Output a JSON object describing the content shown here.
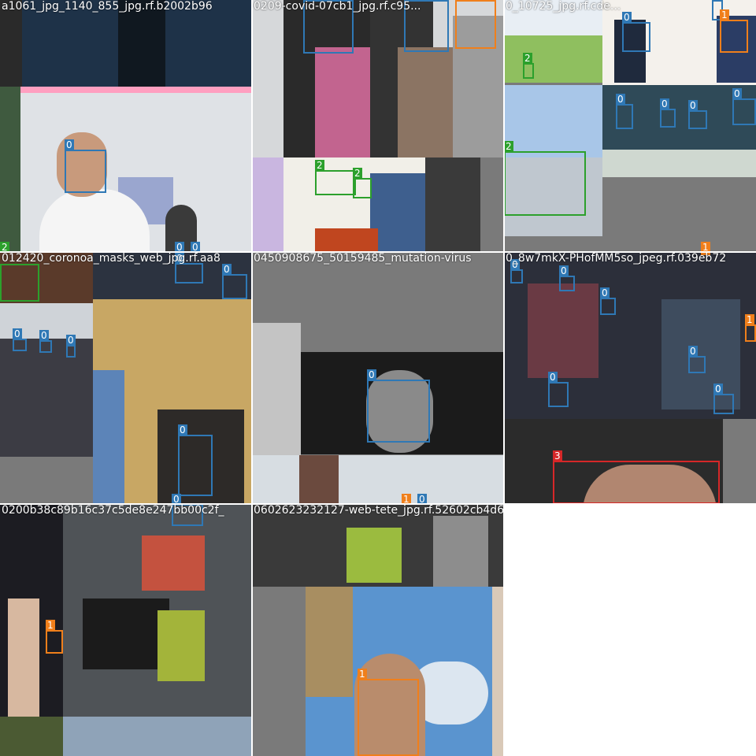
{
  "mosaic": {
    "colors": {
      "0": "#2f78b5",
      "1": "#f07f1b",
      "2": "#2ca02c",
      "3": "#d62728"
    },
    "tiles": [
      {
        "title": "a1061_jpg_1140_855_jpg.rf.b2002b96",
        "boxes": [
          {
            "cls": "0"
          },
          {
            "cls": "0"
          },
          {
            "cls": "0"
          },
          {
            "cls": "2"
          }
        ]
      },
      {
        "title": "0209-covid-07cb1_jpg.rf.c95...",
        "boxes": [
          {
            "cls": "0"
          },
          {
            "cls": "0"
          },
          {
            "cls": "1"
          },
          {
            "cls": "2"
          },
          {
            "cls": "2"
          }
        ]
      },
      {
        "title": "0_10725_jpg.rf.cde...",
        "boxes": [
          {
            "cls": "2"
          },
          {
            "cls": "0"
          },
          {
            "cls": "0"
          },
          {
            "cls": "1"
          },
          {
            "cls": "0"
          },
          {
            "cls": "0"
          },
          {
            "cls": "0"
          },
          {
            "cls": "0"
          },
          {
            "cls": "2"
          },
          {
            "cls": "1"
          }
        ]
      },
      {
        "title": "012420_coronoa_masks_web_jpg.rf.aa8",
        "boxes": [
          {
            "cls": "0"
          },
          {
            "cls": "0"
          },
          {
            "cls": "0"
          },
          {
            "cls": "0"
          },
          {
            "cls": "0"
          },
          {
            "cls": "0"
          },
          {
            "cls": "0"
          }
        ]
      },
      {
        "title": "0450908675_50159485_mutation-virus",
        "boxes": [
          {
            "cls": "0"
          },
          {
            "cls": "1"
          },
          {
            "cls": "0"
          }
        ]
      },
      {
        "title": "0_8w7mkX-PHofMM5so_jpeg.rf.039eb72",
        "boxes": [
          {
            "cls": "0"
          },
          {
            "cls": "0"
          },
          {
            "cls": "0"
          },
          {
            "cls": "0"
          },
          {
            "cls": "0"
          },
          {
            "cls": "0"
          },
          {
            "cls": "1"
          },
          {
            "cls": "1"
          },
          {
            "cls": "3"
          }
        ]
      },
      {
        "title": "0200b38c89b16c37c5de8e247bb00c2f_",
        "boxes": [
          {
            "cls": "0"
          },
          {
            "cls": "1"
          }
        ]
      },
      {
        "title": "0602623232127-web-tete_jpg.rf.52602cb4d6",
        "boxes": [
          {
            "cls": "1"
          }
        ]
      }
    ]
  }
}
